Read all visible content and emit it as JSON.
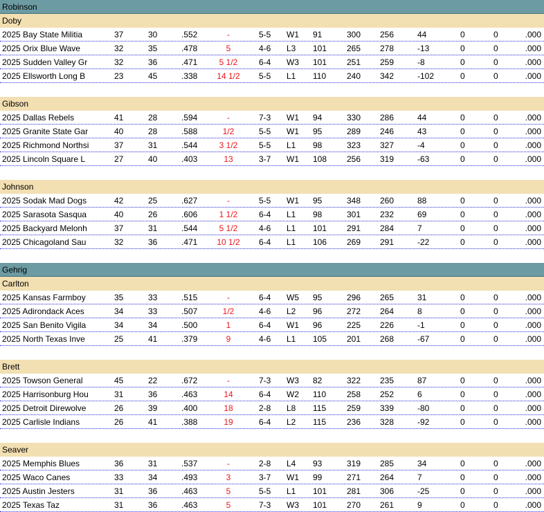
{
  "colors": {
    "league_band": "#6d9ba3",
    "division_band": "#f2dfb2",
    "row_separator": "#2b2bd6",
    "games_behind_text": "#e8141b"
  },
  "leagues": [
    {
      "name": "Robinson",
      "divisions": [
        {
          "name": "Doby",
          "teams": [
            {
              "team": "2025 Bay State Militia",
              "w": "37",
              "l": "30",
              "pct": ".552",
              "gb": "-",
              "last10": "5-5",
              "streak": "W1",
              "col1": "91",
              "rs": "300",
              "ra": "256",
              "diff": "44",
              "col2": "0",
              "col3": "0",
              "col4": ".000"
            },
            {
              "team": "2025 Orix  Blue Wave",
              "w": "32",
              "l": "35",
              "pct": ".478",
              "gb": "5",
              "last10": "4-6",
              "streak": "L3",
              "col1": "101",
              "rs": "265",
              "ra": "278",
              "diff": "-13",
              "col2": "0",
              "col3": "0",
              "col4": ".000"
            },
            {
              "team": "2025 Sudden Valley Gr",
              "w": "32",
              "l": "36",
              "pct": ".471",
              "gb": "5 1/2",
              "last10": "6-4",
              "streak": "W3",
              "col1": "101",
              "rs": "251",
              "ra": "259",
              "diff": "-8",
              "col2": "0",
              "col3": "0",
              "col4": ".000"
            },
            {
              "team": "2025 Ellsworth Long B",
              "w": "23",
              "l": "45",
              "pct": ".338",
              "gb": "14 1/2",
              "last10": "5-5",
              "streak": "L1",
              "col1": "110",
              "rs": "240",
              "ra": "342",
              "diff": "-102",
              "col2": "0",
              "col3": "0",
              "col4": ".000"
            }
          ]
        },
        {
          "name": "Gibson",
          "teams": [
            {
              "team": "2025 Dallas Rebels",
              "w": "41",
              "l": "28",
              "pct": ".594",
              "gb": "-",
              "last10": "7-3",
              "streak": "W1",
              "col1": "94",
              "rs": "330",
              "ra": "286",
              "diff": "44",
              "col2": "0",
              "col3": "0",
              "col4": ".000"
            },
            {
              "team": "2025 Granite State Gar",
              "w": "40",
              "l": "28",
              "pct": ".588",
              "gb": "1/2",
              "last10": "5-5",
              "streak": "W1",
              "col1": "95",
              "rs": "289",
              "ra": "246",
              "diff": "43",
              "col2": "0",
              "col3": "0",
              "col4": ".000"
            },
            {
              "team": "2025 Richmond Northsi",
              "w": "37",
              "l": "31",
              "pct": ".544",
              "gb": "3 1/2",
              "last10": "5-5",
              "streak": "L1",
              "col1": "98",
              "rs": "323",
              "ra": "327",
              "diff": "-4",
              "col2": "0",
              "col3": "0",
              "col4": ".000"
            },
            {
              "team": "2025 Lincoln Square L",
              "w": "27",
              "l": "40",
              "pct": ".403",
              "gb": "13",
              "last10": "3-7",
              "streak": "W1",
              "col1": "108",
              "rs": "256",
              "ra": "319",
              "diff": "-63",
              "col2": "0",
              "col3": "0",
              "col4": ".000"
            }
          ]
        },
        {
          "name": "Johnson",
          "teams": [
            {
              "team": "2025 Sodak Mad Dogs",
              "w": "42",
              "l": "25",
              "pct": ".627",
              "gb": "-",
              "last10": "5-5",
              "streak": "W1",
              "col1": "95",
              "rs": "348",
              "ra": "260",
              "diff": "88",
              "col2": "0",
              "col3": "0",
              "col4": ".000"
            },
            {
              "team": "2025 Sarasota Sasqua",
              "w": "40",
              "l": "26",
              "pct": ".606",
              "gb": "1 1/2",
              "last10": "6-4",
              "streak": "L1",
              "col1": "98",
              "rs": "301",
              "ra": "232",
              "diff": "69",
              "col2": "0",
              "col3": "0",
              "col4": ".000"
            },
            {
              "team": "2025 Backyard Melonh",
              "w": "37",
              "l": "31",
              "pct": ".544",
              "gb": "5 1/2",
              "last10": "4-6",
              "streak": "L1",
              "col1": "101",
              "rs": "291",
              "ra": "284",
              "diff": "7",
              "col2": "0",
              "col3": "0",
              "col4": ".000"
            },
            {
              "team": "2025 Chicagoland Sau",
              "w": "32",
              "l": "36",
              "pct": ".471",
              "gb": "10 1/2",
              "last10": "6-4",
              "streak": "L1",
              "col1": "106",
              "rs": "269",
              "ra": "291",
              "diff": "-22",
              "col2": "0",
              "col3": "0",
              "col4": ".000"
            }
          ]
        }
      ]
    },
    {
      "name": "Gehrig",
      "divisions": [
        {
          "name": "Carlton",
          "teams": [
            {
              "team": "2025 Kansas Farmboy",
              "w": "35",
              "l": "33",
              "pct": ".515",
              "gb": "-",
              "last10": "6-4",
              "streak": "W5",
              "col1": "95",
              "rs": "296",
              "ra": "265",
              "diff": "31",
              "col2": "0",
              "col3": "0",
              "col4": ".000"
            },
            {
              "team": "2025 Adirondack Aces",
              "w": "34",
              "l": "33",
              "pct": ".507",
              "gb": "1/2",
              "last10": "4-6",
              "streak": "L2",
              "col1": "96",
              "rs": "272",
              "ra": "264",
              "diff": "8",
              "col2": "0",
              "col3": "0",
              "col4": ".000"
            },
            {
              "team": "2025 San Benito Vigila",
              "w": "34",
              "l": "34",
              "pct": ".500",
              "gb": "1",
              "last10": "6-4",
              "streak": "W1",
              "col1": "96",
              "rs": "225",
              "ra": "226",
              "diff": "-1",
              "col2": "0",
              "col3": "0",
              "col4": ".000"
            },
            {
              "team": "2025 North Texas Inve",
              "w": "25",
              "l": "41",
              "pct": ".379",
              "gb": "9",
              "last10": "4-6",
              "streak": "L1",
              "col1": "105",
              "rs": "201",
              "ra": "268",
              "diff": "-67",
              "col2": "0",
              "col3": "0",
              "col4": ".000"
            }
          ]
        },
        {
          "name": "Brett",
          "teams": [
            {
              "team": "2025 Towson  General",
              "w": "45",
              "l": "22",
              "pct": ".672",
              "gb": "-",
              "last10": "7-3",
              "streak": "W3",
              "col1": "82",
              "rs": "322",
              "ra": "235",
              "diff": "87",
              "col2": "0",
              "col3": "0",
              "col4": ".000"
            },
            {
              "team": "2025 Harrisonburg Hou",
              "w": "31",
              "l": "36",
              "pct": ".463",
              "gb": "14",
              "last10": "6-4",
              "streak": "W2",
              "col1": "110",
              "rs": "258",
              "ra": "252",
              "diff": "6",
              "col2": "0",
              "col3": "0",
              "col4": ".000"
            },
            {
              "team": "2025 Detroit Direwolve",
              "w": "26",
              "l": "39",
              "pct": ".400",
              "gb": "18",
              "last10": "2-8",
              "streak": "L8",
              "col1": "115",
              "rs": "259",
              "ra": "339",
              "diff": "-80",
              "col2": "0",
              "col3": "0",
              "col4": ".000"
            },
            {
              "team": "2025 Carlisle Indians",
              "w": "26",
              "l": "41",
              "pct": ".388",
              "gb": "19",
              "last10": "6-4",
              "streak": "L2",
              "col1": "115",
              "rs": "236",
              "ra": "328",
              "diff": "-92",
              "col2": "0",
              "col3": "0",
              "col4": ".000"
            }
          ]
        },
        {
          "name": "Seaver",
          "teams": [
            {
              "team": "2025 Memphis Blues",
              "w": "36",
              "l": "31",
              "pct": ".537",
              "gb": "-",
              "last10": "2-8",
              "streak": "L4",
              "col1": "93",
              "rs": "319",
              "ra": "285",
              "diff": "34",
              "col2": "0",
              "col3": "0",
              "col4": ".000"
            },
            {
              "team": "2025 Waco Canes",
              "w": "33",
              "l": "34",
              "pct": ".493",
              "gb": "3",
              "last10": "3-7",
              "streak": "W1",
              "col1": "99",
              "rs": "271",
              "ra": "264",
              "diff": "7",
              "col2": "0",
              "col3": "0",
              "col4": ".000"
            },
            {
              "team": "2025 Austin Jesters",
              "w": "31",
              "l": "36",
              "pct": ".463",
              "gb": "5",
              "last10": "5-5",
              "streak": "L1",
              "col1": "101",
              "rs": "281",
              "ra": "306",
              "diff": "-25",
              "col2": "0",
              "col3": "0",
              "col4": ".000"
            },
            {
              "team": "2025 Texas Taz",
              "w": "31",
              "l": "36",
              "pct": ".463",
              "gb": "5",
              "last10": "7-3",
              "streak": "W3",
              "col1": "101",
              "rs": "270",
              "ra": "261",
              "diff": "9",
              "col2": "0",
              "col3": "0",
              "col4": ".000"
            }
          ]
        }
      ]
    }
  ]
}
